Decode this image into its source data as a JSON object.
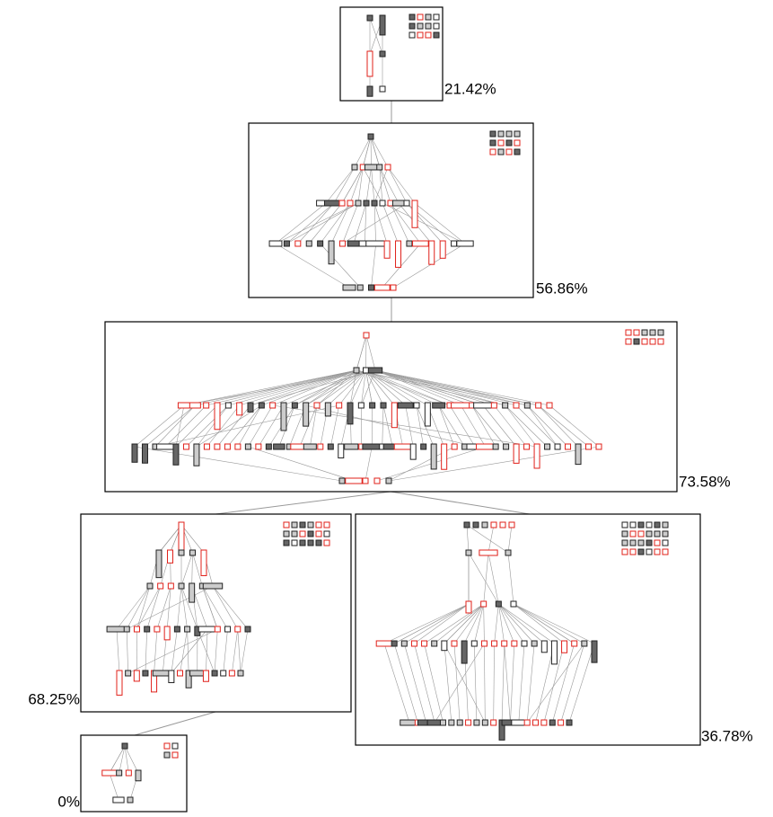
{
  "nodes": [
    {
      "label": "21.42%"
    },
    {
      "label": "56.86%"
    },
    {
      "label": "73.58%"
    },
    {
      "label": "68.25%"
    },
    {
      "label": "36.78%"
    },
    {
      "label": "0%"
    }
  ]
}
